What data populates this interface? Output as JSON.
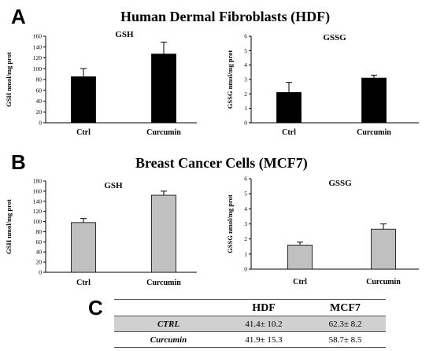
{
  "panel_a": {
    "letter": "A",
    "title": "Human Dermal Fibroblasts (HDF)"
  },
  "panel_b": {
    "letter": "B",
    "title": "Breast Cancer Cells (MCF7)"
  },
  "panel_c": {
    "letter": "C",
    "table": {
      "columns": [
        "",
        "HDF",
        "MCF7"
      ],
      "rows": [
        {
          "label": "CTRL",
          "hdf": "41.4± 10.2",
          "mcf7": "62.3± 8.2"
        },
        {
          "label": "Curcumin",
          "hdf": "41.9± 15.3",
          "mcf7": "58.7± 8.5"
        }
      ]
    }
  },
  "colors": {
    "hdf_bar": "#000000",
    "mcf7_bar": "#c0c0c0",
    "table_shade": "#d0d0d0"
  },
  "chart_data": [
    {
      "id": "hdf-gsh",
      "type": "bar",
      "title": "GSH",
      "xlabel": "",
      "ylabel": "GSH nmol/mg prot",
      "categories": [
        "Ctrl",
        "Curcumin"
      ],
      "values": [
        85,
        127
      ],
      "errors": [
        15,
        22
      ],
      "ylim": [
        0,
        160
      ],
      "yticks": [
        0,
        20,
        40,
        60,
        80,
        100,
        120,
        140,
        160
      ],
      "color": "#000000",
      "grid": false
    },
    {
      "id": "hdf-gssg",
      "type": "bar",
      "title": "GSSG",
      "xlabel": "",
      "ylabel": "GSSG nmol/mg prot",
      "categories": [
        "Ctrl",
        "Curcumin"
      ],
      "values": [
        2.1,
        3.1
      ],
      "errors": [
        0.7,
        0.2
      ],
      "ylim": [
        0,
        6
      ],
      "yticks": [
        0,
        1,
        2,
        3,
        4,
        5,
        6
      ],
      "color": "#000000",
      "grid": false
    },
    {
      "id": "mcf7-gsh",
      "type": "bar",
      "title": "GSH",
      "xlabel": "",
      "ylabel": "GSH nmol/mg prot",
      "categories": [
        "Ctrl",
        "Curcumin"
      ],
      "values": [
        98,
        152
      ],
      "errors": [
        8,
        8
      ],
      "ylim": [
        0,
        180
      ],
      "yticks": [
        0,
        20,
        40,
        60,
        80,
        100,
        120,
        140,
        160,
        180
      ],
      "color": "#c0c0c0",
      "grid": false
    },
    {
      "id": "mcf7-gssg",
      "type": "bar",
      "title": "GSSG",
      "xlabel": "",
      "ylabel": "GSSG nmol/mg prot",
      "categories": [
        "Ctrl",
        "Curcumin"
      ],
      "values": [
        1.6,
        2.65
      ],
      "errors": [
        0.2,
        0.35
      ],
      "ylim": [
        0,
        6
      ],
      "yticks": [
        0,
        1,
        2,
        3,
        4,
        5,
        6
      ],
      "color": "#c0c0c0",
      "grid": false
    }
  ]
}
